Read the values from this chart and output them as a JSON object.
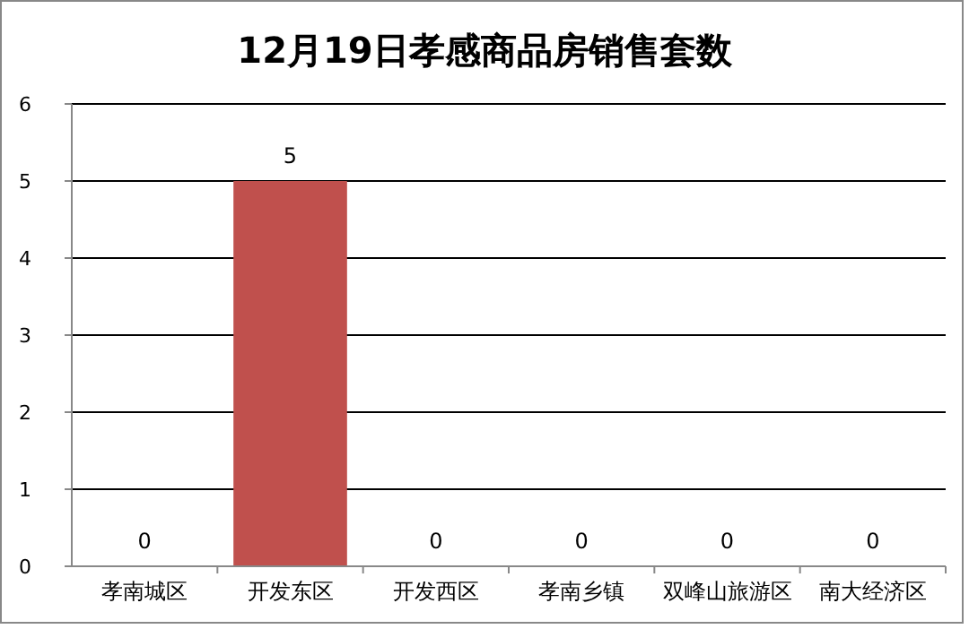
{
  "chart_data": {
    "type": "bar",
    "title": "12月19日孝感商品房销售套数",
    "categories": [
      "孝南城区",
      "开发东区",
      "开发西区",
      "孝南乡镇",
      "双峰山旅游区",
      "南大经济区"
    ],
    "values": [
      0,
      5,
      0,
      0,
      0,
      0
    ],
    "color": "#c0504d",
    "ylim": [
      0,
      6
    ],
    "yticks": [
      0,
      1,
      2,
      3,
      4,
      5,
      6
    ],
    "grid": "y",
    "data_labels": true
  }
}
